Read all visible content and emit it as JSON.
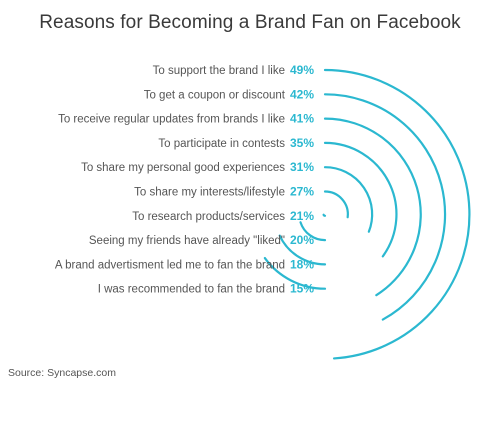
{
  "chart_data": {
    "type": "radial-bar",
    "title": "Reasons for Becoming a Brand Fan on Facebook",
    "source": "Source: Syncapse.com",
    "unit": "%",
    "color": "#2bb8d0",
    "categories": [
      "To support the brand I like",
      "To get a coupon or discount",
      "To receive regular updates from brands I like",
      "To participate in contests",
      "To share my personal good experiences",
      "To share my interests/lifestyle",
      "To research products/services",
      "Seeing my friends have already \"liked\"",
      "A brand advertisment led me to fan the brand",
      "I was recommended to fan the brand"
    ],
    "values": [
      49,
      42,
      41,
      35,
      31,
      27,
      21,
      20,
      18,
      15
    ],
    "value_labels": [
      "49%",
      "42%",
      "41%",
      "35%",
      "31%",
      "27%",
      "21%",
      "20%",
      "18%",
      "15%"
    ]
  }
}
